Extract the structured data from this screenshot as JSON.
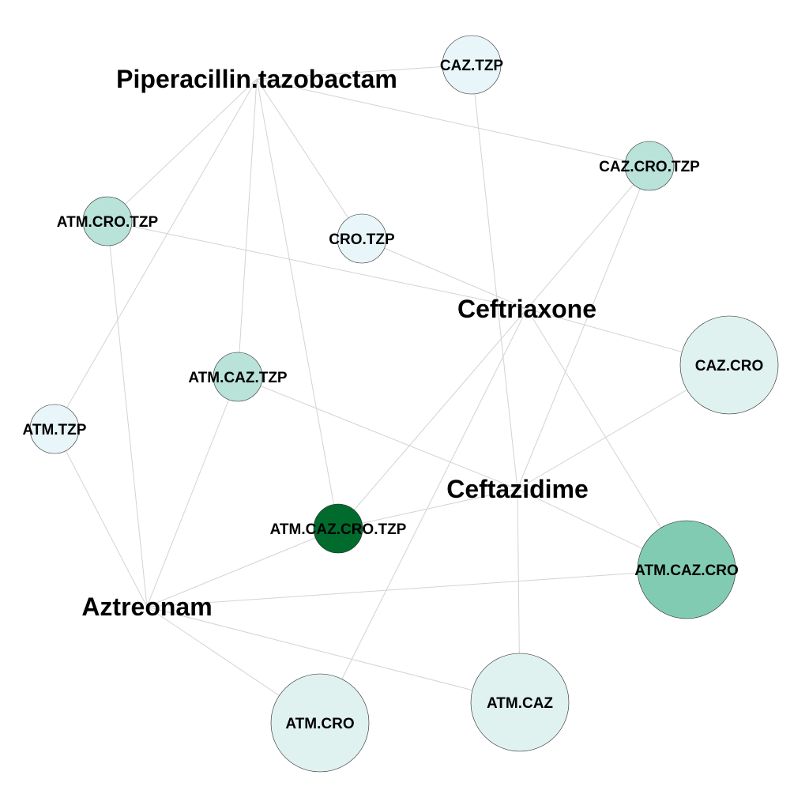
{
  "diagram": {
    "drugs": [
      {
        "id": "tzp",
        "label": "Piperacillin.tazobactam"
      },
      {
        "id": "cro",
        "label": "Ceftriaxone"
      },
      {
        "id": "caz",
        "label": "Ceftazidime"
      },
      {
        "id": "atm",
        "label": "Aztreonam"
      }
    ],
    "combinations": [
      {
        "id": "caz_tzp",
        "label": "CAZ.TZP",
        "fill": "#e9f6f9",
        "members": [
          "caz",
          "tzp"
        ]
      },
      {
        "id": "caz_cro_tzp",
        "label": "CAZ.CRO.TZP",
        "fill": "#b9e2d9",
        "members": [
          "caz",
          "cro",
          "tzp"
        ]
      },
      {
        "id": "atm_cro_tzp",
        "label": "ATM.CRO.TZP",
        "fill": "#b9e2d9",
        "members": [
          "atm",
          "cro",
          "tzp"
        ]
      },
      {
        "id": "cro_tzp",
        "label": "CRO.TZP",
        "fill": "#e9f6f9",
        "members": [
          "cro",
          "tzp"
        ]
      },
      {
        "id": "atm_caz_tzp",
        "label": "ATM.CAZ.TZP",
        "fill": "#b9e2d9",
        "members": [
          "atm",
          "caz",
          "tzp"
        ]
      },
      {
        "id": "atm_tzp",
        "label": "ATM.TZP",
        "fill": "#e9f6f9",
        "members": [
          "atm",
          "tzp"
        ]
      },
      {
        "id": "caz_cro",
        "label": "CAZ.CRO",
        "fill": "#dff2f0",
        "members": [
          "caz",
          "cro"
        ]
      },
      {
        "id": "atm_caz_cro_tzp",
        "label": "ATM.CAZ.CRO.TZP",
        "fill": "#006b2d",
        "members": [
          "atm",
          "caz",
          "cro",
          "tzp"
        ]
      },
      {
        "id": "atm_caz_cro",
        "label": "ATM.CAZ.CRO",
        "fill": "#82cbb3",
        "members": [
          "atm",
          "caz",
          "cro"
        ]
      },
      {
        "id": "atm_cro",
        "label": "ATM.CRO",
        "fill": "#dff2f0",
        "members": [
          "atm",
          "cro"
        ]
      },
      {
        "id": "atm_caz",
        "label": "ATM.CAZ",
        "fill": "#dff2f0",
        "members": [
          "atm",
          "caz"
        ]
      }
    ]
  }
}
